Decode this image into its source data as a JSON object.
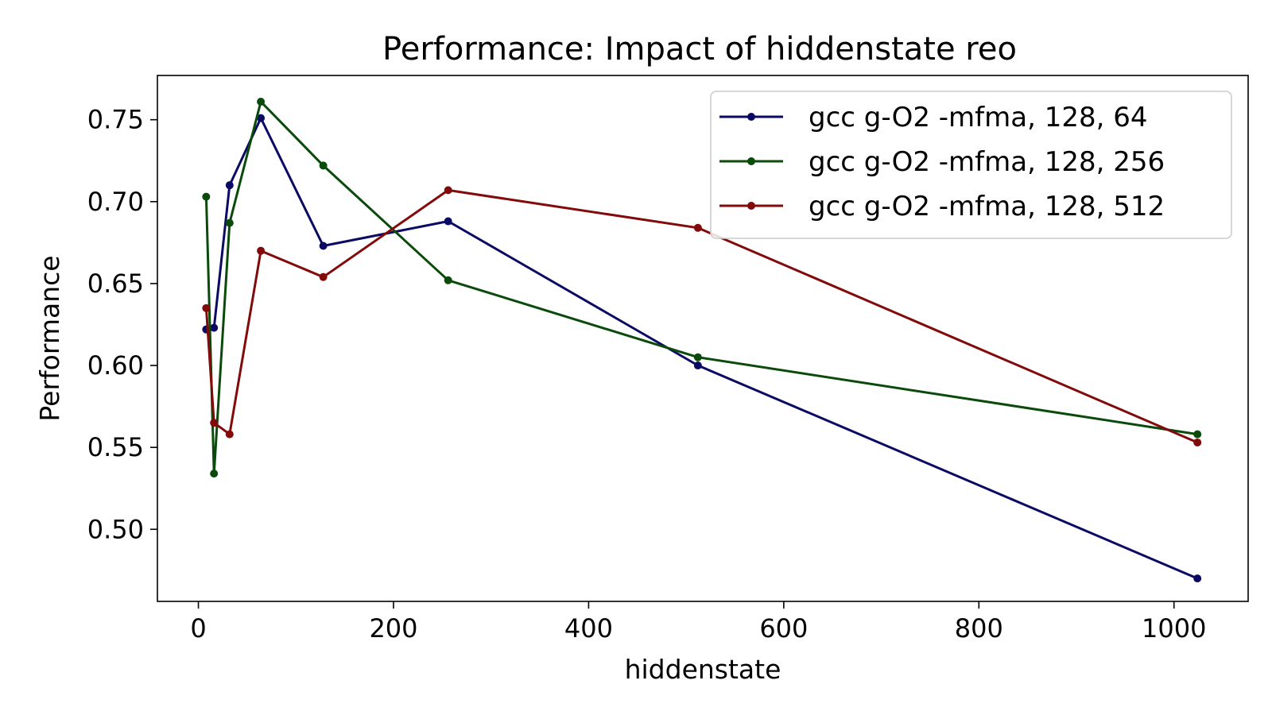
{
  "chart_data": {
    "type": "line",
    "title": "Performance: Impact of hiddenstate reo",
    "xlabel": "hiddenstate",
    "ylabel": "Performance",
    "xlim": [
      -42,
      1076
    ],
    "ylim": [
      0.456,
      0.777
    ],
    "x_ticks": [
      0,
      200,
      400,
      600,
      800,
      1000
    ],
    "x_tick_labels": [
      "0",
      "200",
      "400",
      "600",
      "800",
      "1000"
    ],
    "y_ticks": [
      0.5,
      0.55,
      0.6,
      0.65,
      0.7,
      0.75
    ],
    "y_tick_labels": [
      "0.50",
      "0.55",
      "0.60",
      "0.65",
      "0.70",
      "0.75"
    ],
    "grid": false,
    "legend_position": "top-right",
    "series": [
      {
        "name": "gcc g-O2 -mfma, 128, 64",
        "color": "#0a0a64",
        "points": [
          [
            8,
            0.622
          ],
          [
            16,
            0.623
          ],
          [
            32,
            0.71
          ],
          [
            64,
            0.751
          ],
          [
            128,
            0.673
          ],
          [
            256,
            0.688
          ],
          [
            512,
            0.6
          ],
          [
            1024,
            0.47
          ]
        ]
      },
      {
        "name": "gcc g-O2 -mfma, 128, 256",
        "color": "#0a4a0a",
        "points": [
          [
            8,
            0.703
          ],
          [
            16,
            0.534
          ],
          [
            32,
            0.687
          ],
          [
            64,
            0.761
          ],
          [
            128,
            0.722
          ],
          [
            256,
            0.652
          ],
          [
            512,
            0.605
          ],
          [
            1024,
            0.558
          ]
        ]
      },
      {
        "name": "gcc g-O2 -mfma, 128, 512",
        "color": "#820a0a",
        "points": [
          [
            8,
            0.635
          ],
          [
            16,
            0.565
          ],
          [
            32,
            0.558
          ],
          [
            64,
            0.67
          ],
          [
            128,
            0.654
          ],
          [
            256,
            0.707
          ],
          [
            512,
            0.684
          ],
          [
            1024,
            0.553
          ]
        ]
      }
    ]
  }
}
